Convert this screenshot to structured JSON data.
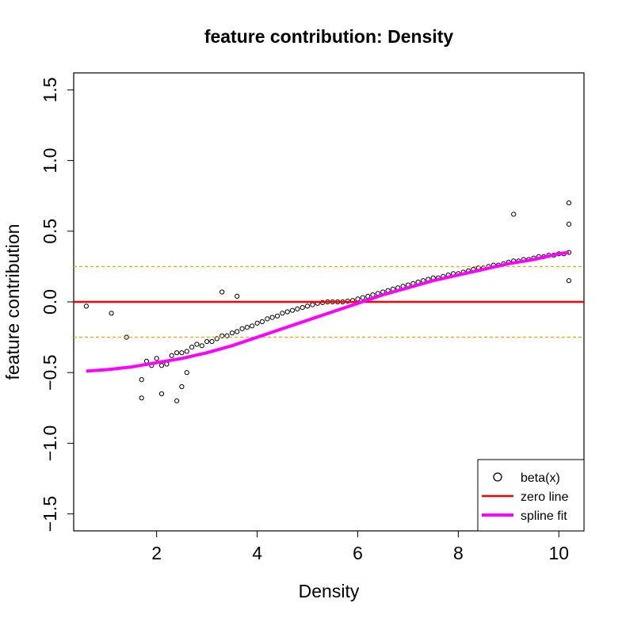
{
  "chart_data": {
    "type": "scatter",
    "title": "feature contribution: Density",
    "xlabel": "Density",
    "ylabel": "feature contribution",
    "xlim": [
      0.35,
      10.5
    ],
    "ylim": [
      -1.62,
      1.62
    ],
    "xticks": [
      2,
      4,
      6,
      8,
      10
    ],
    "xtick_labels": [
      "2",
      "4",
      "6",
      "8",
      "10"
    ],
    "yticks": [
      -1.5,
      -1.0,
      -0.5,
      0.0,
      0.5,
      1.0,
      1.5
    ],
    "ytick_labels": [
      "−1.5",
      "−1.0",
      "−0.5",
      "0.0",
      "0.5",
      "1.0",
      "1.5"
    ],
    "grid": false,
    "legend_position": "bottom-right",
    "series": [
      {
        "name": "beta(x)",
        "kind": "points",
        "color": "#000000",
        "x": [
          0.6,
          1.1,
          1.4,
          1.7,
          1.8,
          1.9,
          2.0,
          2.1,
          2.2,
          2.3,
          2.4,
          2.5,
          2.6,
          2.7,
          2.8,
          2.9,
          3.0,
          3.1,
          3.2,
          3.3,
          3.4,
          3.5,
          3.6,
          3.7,
          3.8,
          3.9,
          4.0,
          4.1,
          4.2,
          4.3,
          4.4,
          4.5,
          4.6,
          4.7,
          4.8,
          4.9,
          5.0,
          5.1,
          5.2,
          5.3,
          5.4,
          5.5,
          5.6,
          5.7,
          5.8,
          5.9,
          6.0,
          6.1,
          6.2,
          6.3,
          6.4,
          6.5,
          6.6,
          6.7,
          6.8,
          6.9,
          7.0,
          7.1,
          7.2,
          7.3,
          7.4,
          7.5,
          7.6,
          7.7,
          7.8,
          7.9,
          8.0,
          8.1,
          8.2,
          8.3,
          8.4,
          8.5,
          8.6,
          8.7,
          8.8,
          8.9,
          9.0,
          9.1,
          9.2,
          9.3,
          9.4,
          9.5,
          9.6,
          9.7,
          9.8,
          9.9,
          10.0,
          10.1,
          10.2,
          10.2,
          10.2,
          1.7,
          2.1,
          2.4,
          2.5,
          2.6,
          3.3,
          3.6,
          9.1,
          10.2
        ],
        "y": [
          -0.03,
          -0.08,
          -0.25,
          -0.68,
          -0.42,
          -0.45,
          -0.4,
          -0.45,
          -0.44,
          -0.38,
          -0.36,
          -0.36,
          -0.35,
          -0.32,
          -0.3,
          -0.31,
          -0.28,
          -0.28,
          -0.26,
          -0.24,
          -0.24,
          -0.22,
          -0.21,
          -0.19,
          -0.18,
          -0.17,
          -0.15,
          -0.14,
          -0.12,
          -0.11,
          -0.1,
          -0.08,
          -0.07,
          -0.06,
          -0.05,
          -0.04,
          -0.03,
          -0.02,
          -0.01,
          -0.005,
          0.0,
          0.0,
          0.0,
          0.0,
          0.005,
          0.01,
          0.02,
          0.03,
          0.04,
          0.05,
          0.06,
          0.07,
          0.08,
          0.09,
          0.1,
          0.11,
          0.12,
          0.13,
          0.14,
          0.15,
          0.16,
          0.17,
          0.17,
          0.18,
          0.19,
          0.2,
          0.2,
          0.21,
          0.22,
          0.23,
          0.24,
          0.24,
          0.25,
          0.26,
          0.26,
          0.27,
          0.28,
          0.29,
          0.29,
          0.3,
          0.3,
          0.31,
          0.32,
          0.32,
          0.33,
          0.33,
          0.34,
          0.34,
          0.7,
          0.55,
          0.15,
          -0.55,
          -0.65,
          -0.7,
          -0.6,
          -0.5,
          0.07,
          0.04,
          0.62,
          0.35
        ]
      },
      {
        "name": "zero line",
        "kind": "hline",
        "color": "#ff0000",
        "y": 0.0
      },
      {
        "name": "spline fit",
        "kind": "line",
        "color": "#ff00ff",
        "x": [
          0.6,
          1.0,
          1.5,
          2.0,
          2.5,
          3.0,
          3.5,
          4.0,
          4.5,
          5.0,
          5.5,
          6.0,
          6.5,
          7.0,
          7.5,
          8.0,
          8.5,
          9.0,
          9.5,
          10.0,
          10.2
        ],
        "y": [
          -0.49,
          -0.48,
          -0.46,
          -0.43,
          -0.4,
          -0.36,
          -0.31,
          -0.25,
          -0.19,
          -0.13,
          -0.07,
          -0.01,
          0.05,
          0.1,
          0.15,
          0.19,
          0.23,
          0.27,
          0.3,
          0.34,
          0.35
        ]
      }
    ],
    "reference_lines": [
      {
        "kind": "hline",
        "y": 0.25,
        "color": "#ffa500",
        "style": "dashed"
      },
      {
        "kind": "hline",
        "y": -0.25,
        "color": "#ffa500",
        "style": "dashed"
      }
    ],
    "legend": [
      {
        "label": "beta(x)",
        "symbol": "circle"
      },
      {
        "label": "zero line",
        "symbol": "line",
        "color": "#ff0000"
      },
      {
        "label": "spline fit",
        "symbol": "thick-line",
        "color": "#ff00ff"
      }
    ]
  }
}
